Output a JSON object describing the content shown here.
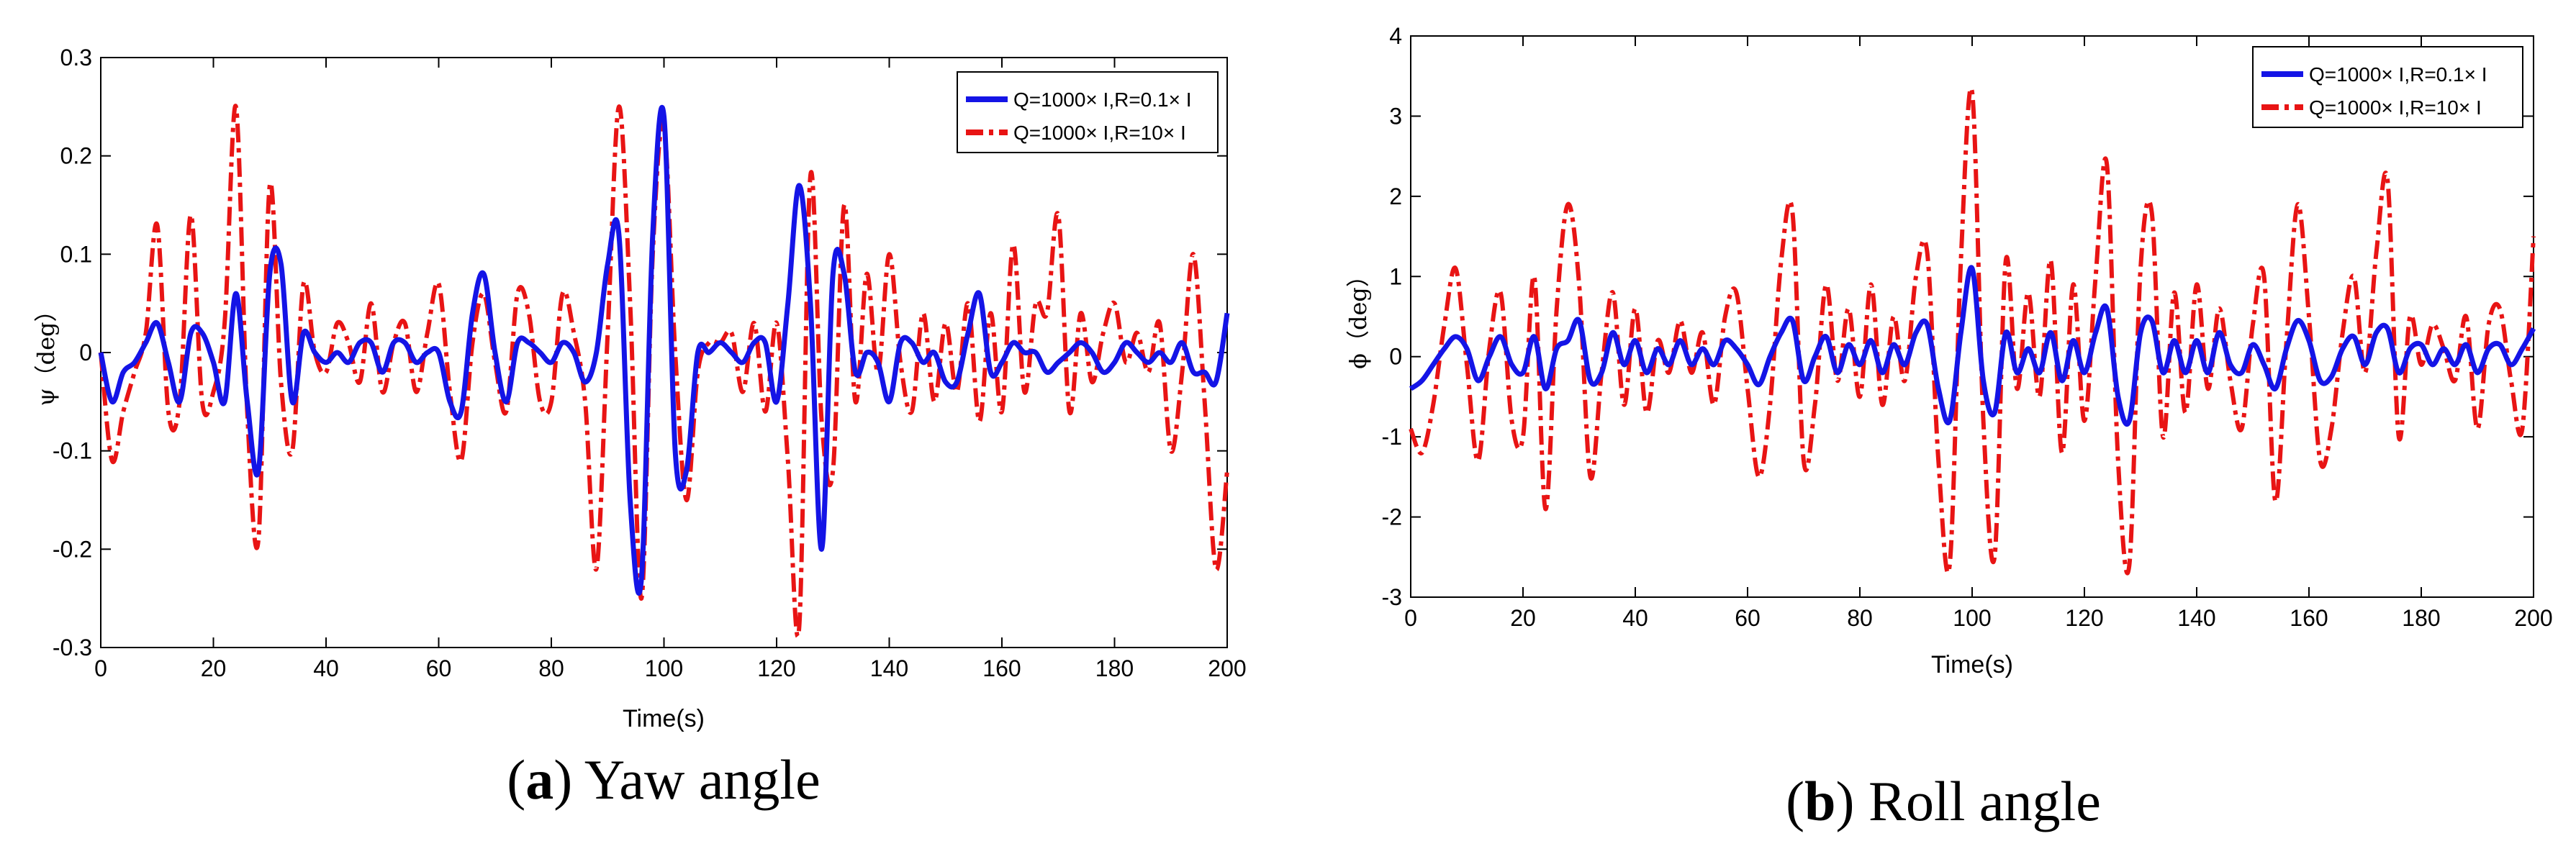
{
  "chart_data": [
    {
      "type": "line",
      "caption_letter": "a",
      "caption_text": "Yaw angle",
      "xlabel": "Time(s)",
      "ylabel": "ψ（deg）",
      "xlim": [
        0,
        200
      ],
      "ylim": [
        -0.3,
        0.3
      ],
      "xticks": [
        0,
        20,
        40,
        60,
        80,
        100,
        120,
        140,
        160,
        180,
        200
      ],
      "yticks": [
        -0.3,
        -0.2,
        -0.1,
        0,
        0.1,
        0.2,
        0.3
      ],
      "grid": false,
      "legend_position": "top-right",
      "series": [
        {
          "name": "Q=1000× I,R=0.1× I",
          "color": "#1414e6",
          "style": "solid",
          "x": [
            0,
            2,
            4,
            6,
            8,
            10,
            12,
            14,
            16,
            18,
            20,
            22,
            24,
            26,
            28,
            30,
            32,
            34,
            36,
            38,
            40,
            42,
            44,
            46,
            48,
            50,
            52,
            54,
            56,
            58,
            60,
            62,
            64,
            66,
            68,
            70,
            72,
            74,
            76,
            78,
            80,
            82,
            84,
            86,
            88,
            90,
            92,
            94,
            96,
            98,
            100,
            102,
            104,
            106,
            108,
            110,
            112,
            114,
            116,
            118,
            120,
            122,
            124,
            126,
            128,
            130,
            132,
            134,
            136,
            138,
            140,
            142,
            144,
            146,
            148,
            150,
            152,
            154,
            156,
            158,
            160,
            162,
            164,
            166,
            168,
            170,
            172,
            174,
            176,
            178,
            180,
            182,
            184,
            186,
            188,
            190,
            192,
            194,
            196,
            198,
            200
          ],
          "values": [
            0,
            -0.05,
            -0.02,
            -0.01,
            0.01,
            0.03,
            -0.01,
            -0.05,
            0.02,
            0.02,
            -0.01,
            -0.05,
            0.06,
            -0.05,
            -0.12,
            0.08,
            0.09,
            -0.05,
            0.02,
            0.0,
            -0.01,
            0.0,
            -0.01,
            0.01,
            0.01,
            -0.02,
            0.01,
            0.01,
            -0.01,
            0.0,
            0.0,
            -0.05,
            -0.06,
            0.04,
            0.08,
            0.0,
            -0.05,
            0.01,
            0.01,
            0.0,
            -0.01,
            0.01,
            0.0,
            -0.03,
            0.0,
            0.09,
            0.12,
            -0.15,
            -0.23,
            0.12,
            0.24,
            -0.1,
            -0.12,
            0.0,
            0.0,
            0.01,
            0.0,
            -0.01,
            0.01,
            0.01,
            -0.05,
            0.05,
            0.17,
            0.05,
            -0.2,
            0.08,
            0.08,
            -0.02,
            0.0,
            -0.01,
            -0.05,
            0.01,
            0.01,
            -0.01,
            0.0,
            -0.03,
            -0.03,
            0.02,
            0.06,
            -0.02,
            -0.01,
            0.01,
            0.0,
            0.0,
            -0.02,
            -0.01,
            0.0,
            0.01,
            0.0,
            -0.02,
            -0.01,
            0.01,
            0.0,
            -0.01,
            0.0,
            -0.01,
            0.01,
            -0.02,
            -0.02,
            -0.03,
            0.04
          ]
        },
        {
          "name": "Q=1000× I,R=10× I",
          "color": "#e81414",
          "style": "dashdot",
          "x": [
            0,
            2,
            4,
            6,
            8,
            10,
            12,
            14,
            16,
            18,
            20,
            22,
            24,
            26,
            28,
            30,
            32,
            34,
            36,
            38,
            40,
            42,
            44,
            46,
            48,
            50,
            52,
            54,
            56,
            58,
            60,
            62,
            64,
            66,
            68,
            70,
            72,
            74,
            76,
            78,
            80,
            82,
            84,
            86,
            88,
            90,
            92,
            94,
            96,
            98,
            100,
            102,
            104,
            106,
            108,
            110,
            112,
            114,
            116,
            118,
            120,
            122,
            124,
            126,
            128,
            130,
            132,
            134,
            136,
            138,
            140,
            142,
            144,
            146,
            148,
            150,
            152,
            154,
            156,
            158,
            160,
            162,
            164,
            166,
            168,
            170,
            172,
            174,
            176,
            178,
            180,
            182,
            184,
            186,
            188,
            190,
            192,
            194,
            196,
            198,
            200
          ],
          "values": [
            0,
            -0.11,
            -0.06,
            -0.02,
            0.02,
            0.13,
            -0.06,
            -0.05,
            0.14,
            -0.05,
            -0.04,
            0.03,
            0.25,
            -0.06,
            -0.19,
            0.17,
            -0.03,
            -0.1,
            0.07,
            0.0,
            -0.02,
            0.03,
            0.01,
            -0.03,
            0.05,
            -0.04,
            0.01,
            0.03,
            -0.04,
            0.02,
            0.07,
            -0.04,
            -0.11,
            0.01,
            0.06,
            -0.01,
            -0.06,
            0.06,
            0.04,
            -0.05,
            -0.05,
            0.06,
            0.02,
            -0.05,
            -0.22,
            0.02,
            0.25,
            0.05,
            -0.25,
            0.1,
            0.23,
            0.0,
            -0.15,
            -0.02,
            0.01,
            0.01,
            0.02,
            -0.04,
            0.03,
            -0.06,
            0.03,
            -0.11,
            -0.28,
            0.18,
            -0.07,
            -0.12,
            0.15,
            -0.05,
            0.08,
            -0.02,
            0.1,
            -0.01,
            -0.06,
            0.04,
            -0.05,
            0.03,
            -0.04,
            0.05,
            -0.07,
            0.04,
            -0.06,
            0.11,
            -0.04,
            0.05,
            0.04,
            0.14,
            -0.06,
            0.04,
            -0.03,
            0.02,
            0.05,
            -0.01,
            0.02,
            -0.02,
            0.03,
            -0.1,
            -0.02,
            0.1,
            -0.05,
            -0.22,
            -0.12
          ]
        }
      ]
    },
    {
      "type": "line",
      "caption_letter": "b",
      "caption_text": "Roll angle",
      "xlabel": "Time(s)",
      "ylabel": "ϕ（deg）",
      "xlim": [
        0,
        200
      ],
      "ylim": [
        -3,
        4
      ],
      "xticks": [
        0,
        20,
        40,
        60,
        80,
        100,
        120,
        140,
        160,
        180,
        200
      ],
      "yticks": [
        -3,
        -2,
        -1,
        0,
        1,
        2,
        3,
        4
      ],
      "grid": false,
      "legend_position": "top-right",
      "series": [
        {
          "name": "Q=1000× I,R=0.1× I",
          "color": "#1414e6",
          "style": "solid",
          "x": [
            0,
            2,
            4,
            6,
            8,
            10,
            12,
            14,
            16,
            18,
            20,
            22,
            24,
            26,
            28,
            30,
            32,
            34,
            36,
            38,
            40,
            42,
            44,
            46,
            48,
            50,
            52,
            54,
            56,
            58,
            60,
            62,
            64,
            66,
            68,
            70,
            72,
            74,
            76,
            78,
            80,
            82,
            84,
            86,
            88,
            90,
            92,
            94,
            96,
            98,
            100,
            102,
            104,
            106,
            108,
            110,
            112,
            114,
            116,
            118,
            120,
            122,
            124,
            126,
            128,
            130,
            132,
            134,
            136,
            138,
            140,
            142,
            144,
            146,
            148,
            150,
            152,
            154,
            156,
            158,
            160,
            162,
            164,
            166,
            168,
            170,
            172,
            174,
            176,
            178,
            180,
            182,
            184,
            186,
            188,
            190,
            192,
            194,
            196,
            198,
            200
          ],
          "values": [
            -0.4,
            -0.3,
            -0.1,
            0.1,
            0.25,
            0.1,
            -0.3,
            0.0,
            0.25,
            -0.1,
            -0.2,
            0.25,
            -0.4,
            0.1,
            0.2,
            0.45,
            -0.3,
            -0.2,
            0.3,
            -0.1,
            0.2,
            -0.2,
            0.1,
            -0.1,
            0.2,
            -0.1,
            0.1,
            -0.1,
            0.2,
            0.1,
            -0.1,
            -0.35,
            0.0,
            0.3,
            0.45,
            -0.3,
            0.0,
            0.25,
            -0.2,
            0.15,
            -0.1,
            0.2,
            -0.2,
            0.15,
            -0.1,
            0.3,
            0.4,
            -0.4,
            -0.8,
            0.3,
            1.1,
            -0.3,
            -0.7,
            0.3,
            -0.2,
            0.1,
            -0.2,
            0.3,
            -0.3,
            0.2,
            -0.2,
            0.3,
            0.6,
            -0.5,
            -0.8,
            0.3,
            0.45,
            -0.2,
            0.2,
            -0.2,
            0.2,
            -0.2,
            0.3,
            -0.1,
            -0.2,
            0.15,
            -0.1,
            -0.4,
            0.1,
            0.45,
            0.2,
            -0.3,
            -0.25,
            0.1,
            0.25,
            -0.1,
            0.3,
            0.35,
            -0.2,
            0.1,
            0.15,
            -0.1,
            0.1,
            -0.1,
            0.15,
            -0.2,
            0.1,
            0.15,
            -0.1,
            0.1,
            0.35
          ]
        },
        {
          "name": "Q=1000× I,R=10× I",
          "color": "#e81414",
          "style": "dashdot",
          "x": [
            0,
            2,
            4,
            6,
            8,
            10,
            12,
            14,
            16,
            18,
            20,
            22,
            24,
            26,
            28,
            30,
            32,
            34,
            36,
            38,
            40,
            42,
            44,
            46,
            48,
            50,
            52,
            54,
            56,
            58,
            60,
            62,
            64,
            66,
            68,
            70,
            72,
            74,
            76,
            78,
            80,
            82,
            84,
            86,
            88,
            90,
            92,
            94,
            96,
            98,
            100,
            102,
            104,
            106,
            108,
            110,
            112,
            114,
            116,
            118,
            120,
            122,
            124,
            126,
            128,
            130,
            132,
            134,
            136,
            138,
            140,
            142,
            144,
            146,
            148,
            150,
            152,
            154,
            156,
            158,
            160,
            162,
            164,
            166,
            168,
            170,
            172,
            174,
            176,
            178,
            180,
            182,
            184,
            186,
            188,
            190,
            192,
            194,
            196,
            198,
            200
          ],
          "values": [
            -0.9,
            -1.2,
            -0.6,
            0.4,
            1.1,
            -0.1,
            -1.3,
            0.1,
            0.8,
            -0.8,
            -1.0,
            1.0,
            -1.9,
            0.6,
            1.9,
            0.9,
            -1.5,
            -0.2,
            0.8,
            -0.6,
            0.6,
            -0.7,
            0.2,
            -0.2,
            0.45,
            -0.2,
            0.3,
            -0.6,
            0.5,
            0.8,
            -0.4,
            -1.5,
            -0.6,
            1.2,
            1.8,
            -1.3,
            -0.6,
            0.9,
            -0.3,
            0.6,
            -0.5,
            0.9,
            -0.6,
            0.5,
            -0.3,
            1.0,
            1.3,
            -1.3,
            -2.6,
            1.2,
            3.3,
            -0.8,
            -2.5,
            1.2,
            -0.4,
            0.8,
            -0.5,
            1.2,
            -1.2,
            0.9,
            -0.8,
            1.0,
            2.4,
            -1.3,
            -2.6,
            1.1,
            1.8,
            -1.0,
            0.8,
            -0.7,
            0.9,
            -0.4,
            0.6,
            -0.3,
            -0.9,
            0.4,
            1.0,
            -1.8,
            0.2,
            1.9,
            0.5,
            -1.3,
            -0.9,
            0.3,
            1.0,
            -0.2,
            1.3,
            2.2,
            -1.0,
            0.5,
            -0.1,
            0.4,
            0.1,
            -0.3,
            0.5,
            -0.9,
            0.4,
            0.6,
            -0.3,
            -0.9,
            1.5
          ]
        }
      ]
    }
  ]
}
